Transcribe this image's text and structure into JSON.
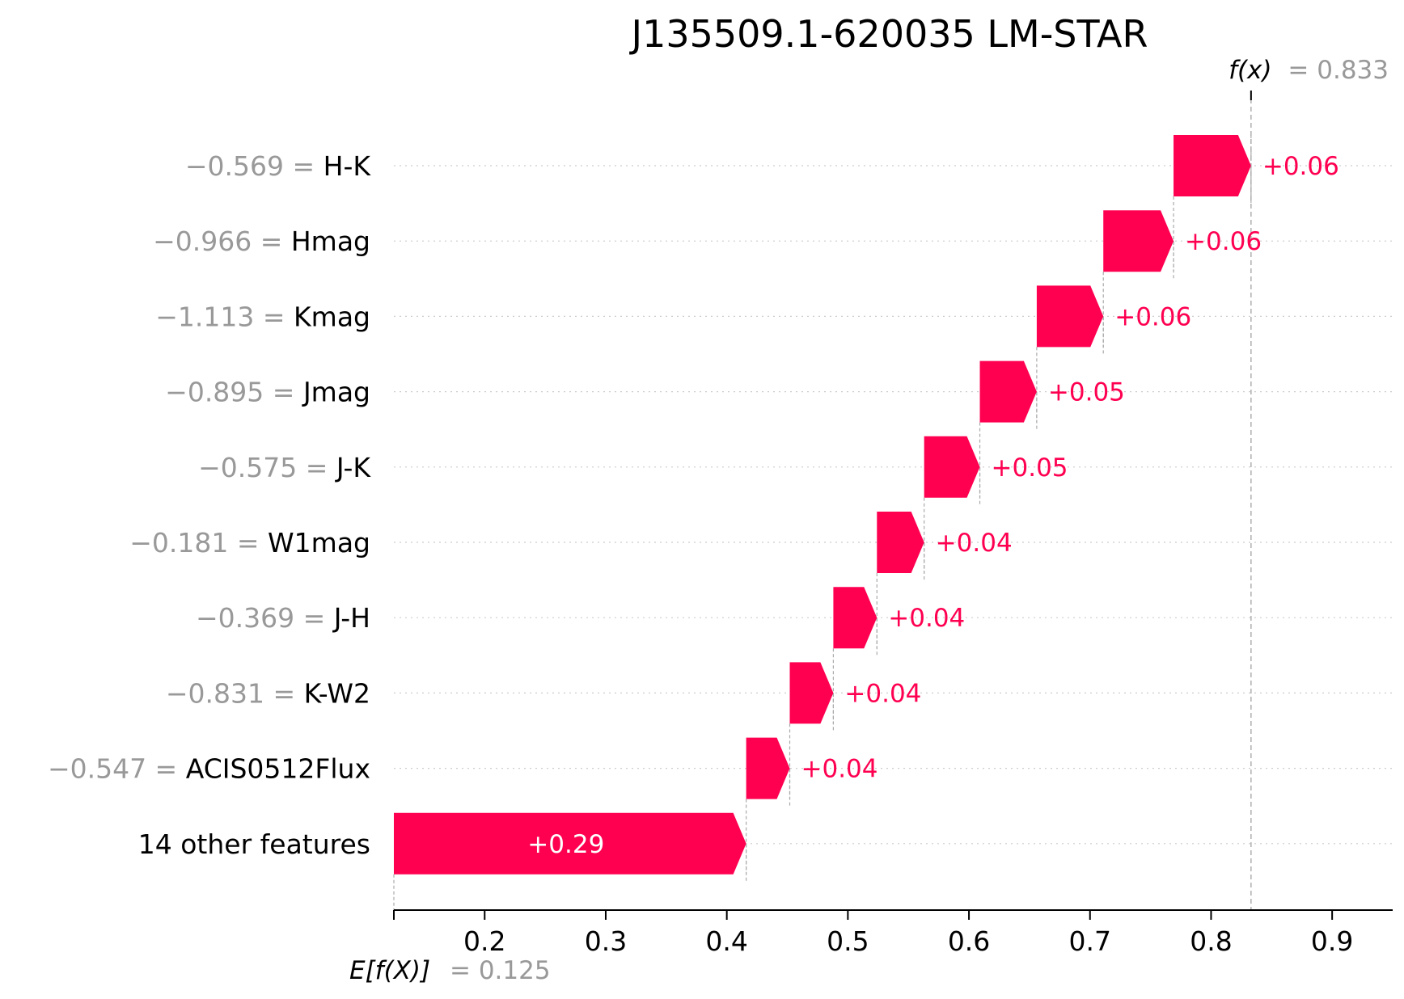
{
  "chart_data": {
    "type": "waterfall",
    "title": "J135509.1-620035 LM-STAR",
    "base_value": 0.125,
    "base_label": "E[f(X)]",
    "base_value_text": "= 0.125",
    "output_value": 0.833,
    "output_label": "f(x)",
    "output_value_text": "= 0.833",
    "xlim": [
      0.125,
      0.95
    ],
    "xticks": [
      0.2,
      0.3,
      0.4,
      0.5,
      0.6,
      0.7,
      0.8,
      0.9
    ],
    "xtick_labels": [
      "0.2",
      "0.3",
      "0.4",
      "0.5",
      "0.6",
      "0.7",
      "0.8",
      "0.9"
    ],
    "features": [
      {
        "name": "H-K",
        "feature_value": "−0.569 = ",
        "contribution": 0.06,
        "label": "+0.06",
        "start": 0.769,
        "end": 0.833
      },
      {
        "name": "Hmag",
        "feature_value": "−0.966 = ",
        "contribution": 0.06,
        "label": "+0.06",
        "start": 0.711,
        "end": 0.769
      },
      {
        "name": "Kmag",
        "feature_value": "−1.113 = ",
        "contribution": 0.06,
        "label": "+0.06",
        "start": 0.656,
        "end": 0.711
      },
      {
        "name": "Jmag",
        "feature_value": "−0.895 = ",
        "contribution": 0.05,
        "label": "+0.05",
        "start": 0.609,
        "end": 0.656
      },
      {
        "name": "J-K",
        "feature_value": "−0.575 = ",
        "contribution": 0.05,
        "label": "+0.05",
        "start": 0.563,
        "end": 0.609
      },
      {
        "name": "W1mag",
        "feature_value": "−0.181 = ",
        "contribution": 0.04,
        "label": "+0.04",
        "start": 0.524,
        "end": 0.563
      },
      {
        "name": "J-H",
        "feature_value": "−0.369 = ",
        "contribution": 0.04,
        "label": "+0.04",
        "start": 0.488,
        "end": 0.524
      },
      {
        "name": "K-W2",
        "feature_value": "−0.831 = ",
        "contribution": 0.04,
        "label": "+0.04",
        "start": 0.452,
        "end": 0.488
      },
      {
        "name": "ACIS0512Flux",
        "feature_value": "−0.547 = ",
        "contribution": 0.04,
        "label": "+0.04",
        "start": 0.416,
        "end": 0.452
      },
      {
        "name": "14 other features",
        "feature_value": "",
        "contribution": 0.29,
        "label": "+0.29",
        "start": 0.125,
        "end": 0.416
      }
    ],
    "colors": {
      "positive": "#ff0051",
      "gridline": "#cccccc",
      "connector": "#aaaaaa",
      "axis": "#000000",
      "muted_text": "#999999",
      "on_bar_text": "#ffffff"
    }
  }
}
